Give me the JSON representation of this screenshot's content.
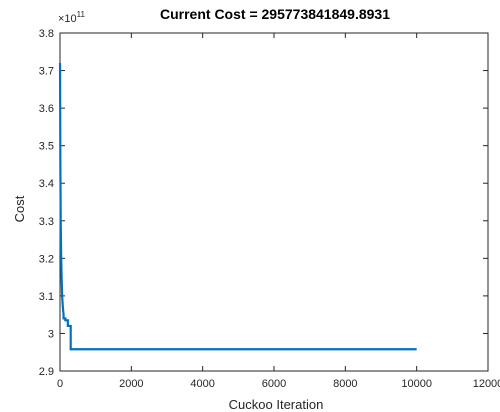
{
  "chart_data": {
    "type": "line",
    "title": "Current Cost = 295773841849.8931",
    "xlabel": "Cuckoo Iteration",
    "ylabel": "Cost",
    "y_exponent_label": "×10",
    "y_exponent_power": "11",
    "xlim": [
      0,
      12000
    ],
    "ylim": [
      2.9,
      3.8
    ],
    "x_ticks": [
      0,
      2000,
      4000,
      6000,
      8000,
      10000,
      12000
    ],
    "x_tick_labels": [
      "0",
      "2000",
      "4000",
      "6000",
      "8000",
      "10000",
      "12000"
    ],
    "y_ticks": [
      2.9,
      3.0,
      3.1,
      3.2,
      3.3,
      3.4,
      3.5,
      3.6,
      3.7,
      3.8
    ],
    "y_tick_labels": [
      "2.9",
      "3",
      "3.1",
      "3.2",
      "3.3",
      "3.4",
      "3.5",
      "3.6",
      "3.7",
      "3.8"
    ],
    "grid": false,
    "series": [
      {
        "color": "#0072BD",
        "x": [
          1,
          10,
          20,
          30,
          45,
          60,
          80,
          100,
          100,
          150,
          150,
          220,
          220,
          300,
          300,
          10000
        ],
        "y": [
          3.72,
          3.45,
          3.3,
          3.22,
          3.15,
          3.1,
          3.07,
          3.05,
          3.04,
          3.04,
          3.035,
          3.035,
          3.02,
          3.02,
          2.958,
          2.958
        ]
      }
    ]
  }
}
